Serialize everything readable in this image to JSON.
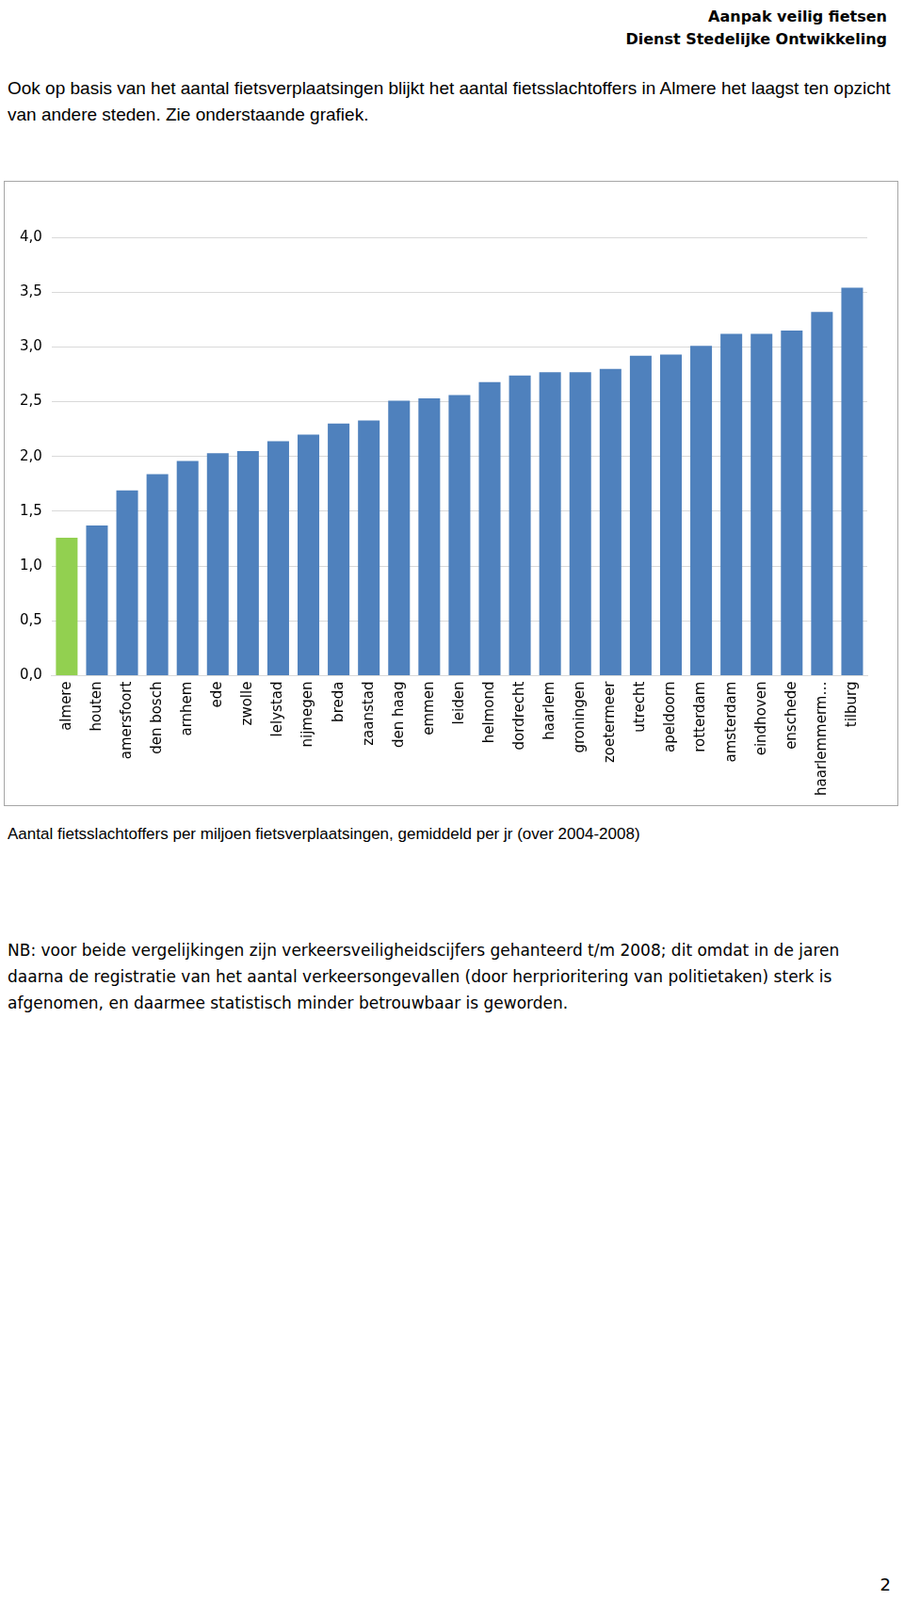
{
  "header": {
    "lines": [
      "Aanpak veilig fietsen",
      "Dienst Stedelijke Ontwikkeling"
    ]
  },
  "intro": "Ook op basis van het aantal  fietsverplaatsingen blijkt het  aantal fietsslachtoffers in Almere het laagst ten opzicht van andere steden. Zie onderstaande grafiek.",
  "chart_data": {
    "type": "bar",
    "categories": [
      "almere",
      "houten",
      "amersfoort",
      "den bosch",
      "arnhem",
      "ede",
      "zwolle",
      "lelystad",
      "nijmegen",
      "breda",
      "zaanstad",
      "den haag",
      "emmen",
      "leiden",
      "helmond",
      "dordrecht",
      "haarlem",
      "groningen",
      "zoetermeer",
      "utrecht",
      "apeldoorn",
      "rotterdam",
      "amsterdam",
      "eindhoven",
      "enschede",
      "haarlemmerm…",
      "tilburg"
    ],
    "values": [
      1.26,
      1.37,
      1.69,
      1.84,
      1.96,
      2.03,
      2.05,
      2.14,
      2.2,
      2.3,
      2.33,
      2.51,
      2.53,
      2.56,
      2.68,
      2.74,
      2.77,
      2.77,
      2.8,
      2.92,
      2.93,
      3.01,
      3.12,
      3.12,
      3.15,
      3.32,
      3.54
    ],
    "colors": [
      "#92d050",
      "#4f81bd",
      "#4f81bd",
      "#4f81bd",
      "#4f81bd",
      "#4f81bd",
      "#4f81bd",
      "#4f81bd",
      "#4f81bd",
      "#4f81bd",
      "#4f81bd",
      "#4f81bd",
      "#4f81bd",
      "#4f81bd",
      "#4f81bd",
      "#4f81bd",
      "#4f81bd",
      "#4f81bd",
      "#4f81bd",
      "#4f81bd",
      "#4f81bd",
      "#4f81bd",
      "#4f81bd",
      "#4f81bd",
      "#4f81bd",
      "#4f81bd",
      "#4f81bd"
    ],
    "ylim": [
      0,
      4
    ],
    "yticks": [
      {
        "value": 0,
        "label": "0,0"
      },
      {
        "value": 0.5,
        "label": "0,5"
      },
      {
        "value": 1,
        "label": "1,0"
      },
      {
        "value": 1.5,
        "label": "1,5"
      },
      {
        "value": 2,
        "label": "2,0"
      },
      {
        "value": 2.5,
        "label": "2,5"
      },
      {
        "value": 3,
        "label": "3,0"
      },
      {
        "value": 3.5,
        "label": "3,5"
      },
      {
        "value": 4,
        "label": "4,0"
      }
    ],
    "grid": true
  },
  "caption": "Aantal fietsslachtoffers per miljoen fietsverplaatsingen, gemiddeld per jr (over 2004-2008)",
  "note": "NB: voor beide vergelijkingen zijn verkeersveiligheidscijfers gehanteerd t/m 2008; dit omdat in de jaren daarna de registratie van het aantal verkeersongevallen (door herprioritering van politietaken)  sterk is afgenomen, en daarmee statistisch minder betrouwbaar is geworden.",
  "page_number": "2"
}
